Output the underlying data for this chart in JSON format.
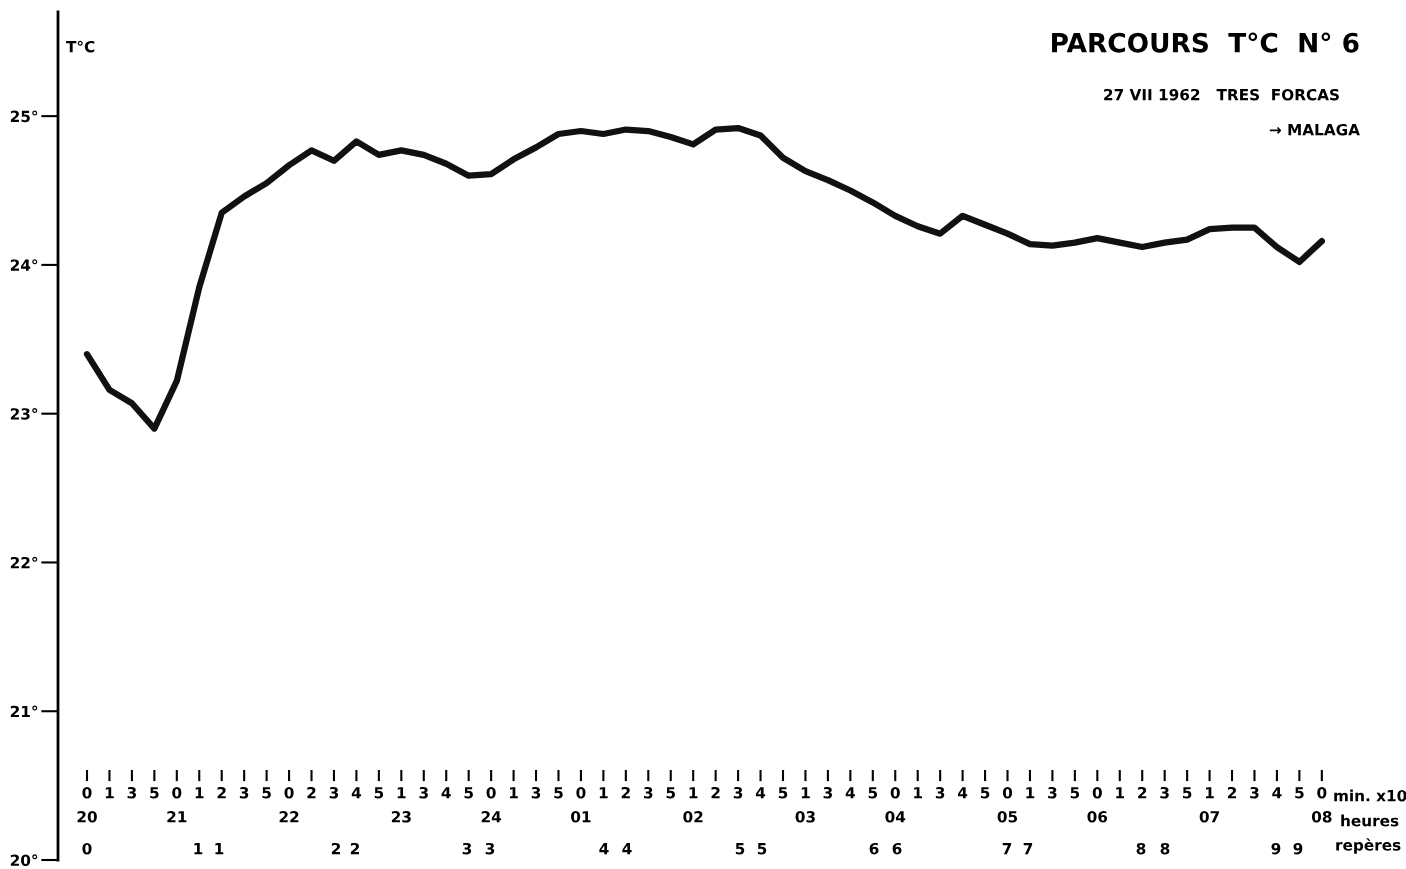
{
  "chart_data": {
    "type": "line",
    "title": "PARCOURS  T°C  N° 6",
    "subtitle": "27 VII 1962   TRES  FORCAS",
    "annotations": [
      "→ MALAGA",
      "heures",
      "repères",
      "0",
      "1",
      "1",
      "2",
      "2",
      "3",
      "3",
      "4",
      "4",
      "5",
      "5",
      "6",
      "6",
      "7",
      "7",
      "8",
      "8",
      "9",
      "9"
    ],
    "ylabel": "T°C",
    "xlabel": "min. x10",
    "categories": [
      "0\n20",
      "1",
      "3",
      "5",
      "0\n21",
      "1",
      "2",
      "3",
      "5",
      "0\n22",
      "2",
      "3",
      "4",
      "5",
      "1\n23",
      "3",
      "4",
      "5",
      "0\n24",
      "1",
      "3",
      "5",
      "0\n01",
      "1",
      "2",
      "3",
      "5",
      "1\n02",
      "2",
      "3",
      "4",
      "5",
      "1\n03",
      "3",
      "4",
      "5",
      "0\n04",
      "1",
      "3",
      "4",
      "5",
      "0\n05",
      "1",
      "3",
      "5",
      "0\n06",
      "1",
      "2",
      "3",
      "5",
      "1\n07",
      "2",
      "3",
      "4",
      "5",
      "0\n08"
    ],
    "series": [
      {
        "color": "#111111",
        "values": [
          23.4,
          23.16,
          23.07,
          22.9,
          23.22,
          23.85,
          24.35,
          24.46,
          24.55,
          24.67,
          24.77,
          24.7,
          24.83,
          24.74,
          24.77,
          24.74,
          24.68,
          24.6,
          24.61,
          24.71,
          24.79,
          24.88,
          24.9,
          24.88,
          24.91,
          24.9,
          24.86,
          24.81,
          24.91,
          24.92,
          24.87,
          24.72,
          24.63,
          24.57,
          24.5,
          24.42,
          24.33,
          24.26,
          24.21,
          24.33,
          24.27,
          24.21,
          24.14,
          24.13,
          24.15,
          24.18,
          24.15,
          24.12,
          24.15,
          24.17,
          24.24,
          24.25,
          24.25,
          24.12,
          24.02,
          24.16
        ]
      }
    ],
    "ylim": [
      20,
      25.7
    ],
    "yticks": [
      {
        "value": 20,
        "label": "20°"
      },
      {
        "value": 21,
        "label": "21°"
      },
      {
        "value": 22,
        "label": "22°"
      },
      {
        "value": 23,
        "label": "23°"
      },
      {
        "value": 24,
        "label": "24°"
      },
      {
        "value": 25,
        "label": "25°"
      }
    ],
    "line_style": "solid",
    "marker": "none",
    "grid": false,
    "legend": false
  }
}
